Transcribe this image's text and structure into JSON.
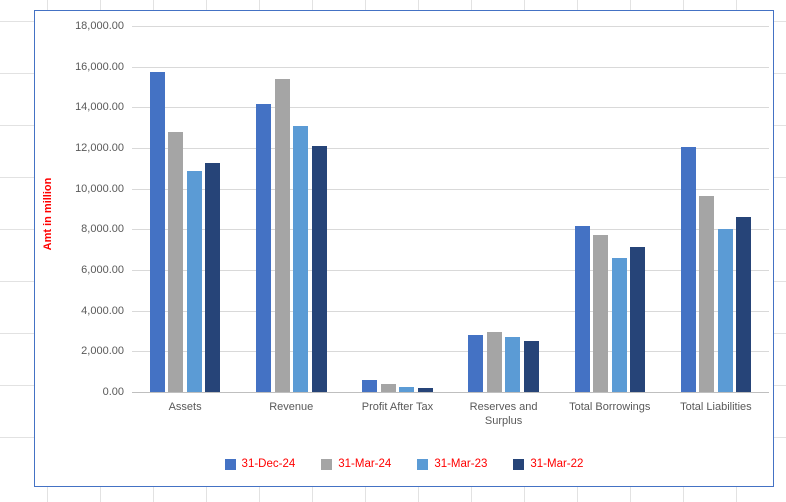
{
  "chart_data": {
    "type": "bar",
    "title": "",
    "xlabel": "",
    "ylabel": "Amt in million",
    "ylim": [
      0,
      18000
    ],
    "ytick_step": 2000,
    "ytick_labels": [
      "0.00",
      "2,000.00",
      "4,000.00",
      "6,000.00",
      "8,000.00",
      "10,000.00",
      "12,000.00",
      "14,000.00",
      "16,000.00",
      "18,000.00"
    ],
    "grid": true,
    "legend_position": "bottom",
    "categories": [
      "Assets",
      "Revenue",
      "Profit After Tax",
      "Reserves and Surplus",
      "Total Borrowings",
      "Total Liabilities"
    ],
    "series": [
      {
        "name": "31-Dec-24",
        "color": "#4472C4",
        "values": [
          15750,
          14150,
          610,
          2780,
          8150,
          12050
        ]
      },
      {
        "name": "31-Mar-24",
        "color": "#A5A5A5",
        "values": [
          12780,
          15400,
          390,
          2970,
          7700,
          9660
        ]
      },
      {
        "name": "31-Mar-23",
        "color": "#5B9BD5",
        "values": [
          10850,
          13100,
          230,
          2690,
          6600,
          8020
        ]
      },
      {
        "name": "31-Mar-22",
        "color": "#264478",
        "values": [
          11250,
          12100,
          210,
          2530,
          7150,
          8620
        ]
      }
    ]
  },
  "colors": {
    "tick_text": "#595959",
    "category_text": "#595959",
    "axis_title_text": "#FF0000",
    "legend_text": "#FF0000",
    "gridline": "#D9D9D9",
    "axis_line": "#BFBFBF",
    "chart_border": "#4472C4",
    "sheet_gridline": "#E2E2E2"
  }
}
